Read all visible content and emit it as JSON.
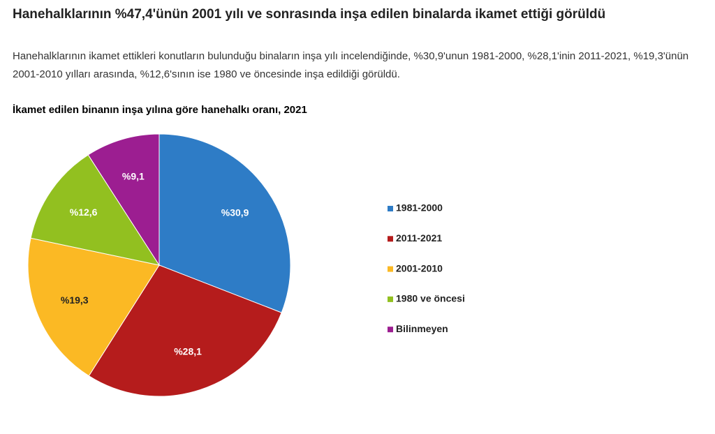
{
  "heading": "Hanehalklarının %47,4'ünün 2001 yılı ve sonrasında inşa edilen binalarda ikamet ettiği görüldü",
  "paragraph": "Hanehalklarının ikamet ettikleri konutların bulunduğu binaların inşa yılı incelendiğinde, %30,9'unun 1981-2000, %28,1'inin 2011-2021, %19,3'ünün 2001-2010 yılları arasında, %12,6'sının ise 1980 ve öncesinde inşa edildiği görüldü.",
  "chart_data": {
    "type": "pie",
    "title": "İkamet edilen binanın inşa yılına göre hanehalkı oranı, 2021",
    "categories": [
      "1981-2000",
      "2011-2021",
      "2001-2010",
      "1980 ve öncesi",
      "Bilinmeyen"
    ],
    "values": [
      30.9,
      28.1,
      19.3,
      12.6,
      9.1
    ],
    "value_labels": [
      "%30,9",
      "%28,1",
      "%19,3",
      "%12,6",
      "%9,1"
    ],
    "colors": [
      "#2e7cc6",
      "#b51c1c",
      "#fbb924",
      "#92c020",
      "#9c1e91"
    ],
    "label_colors": [
      "#ffffff",
      "#ffffff",
      "#222222",
      "#ffffff",
      "#ffffff"
    ],
    "legend": "right"
  }
}
